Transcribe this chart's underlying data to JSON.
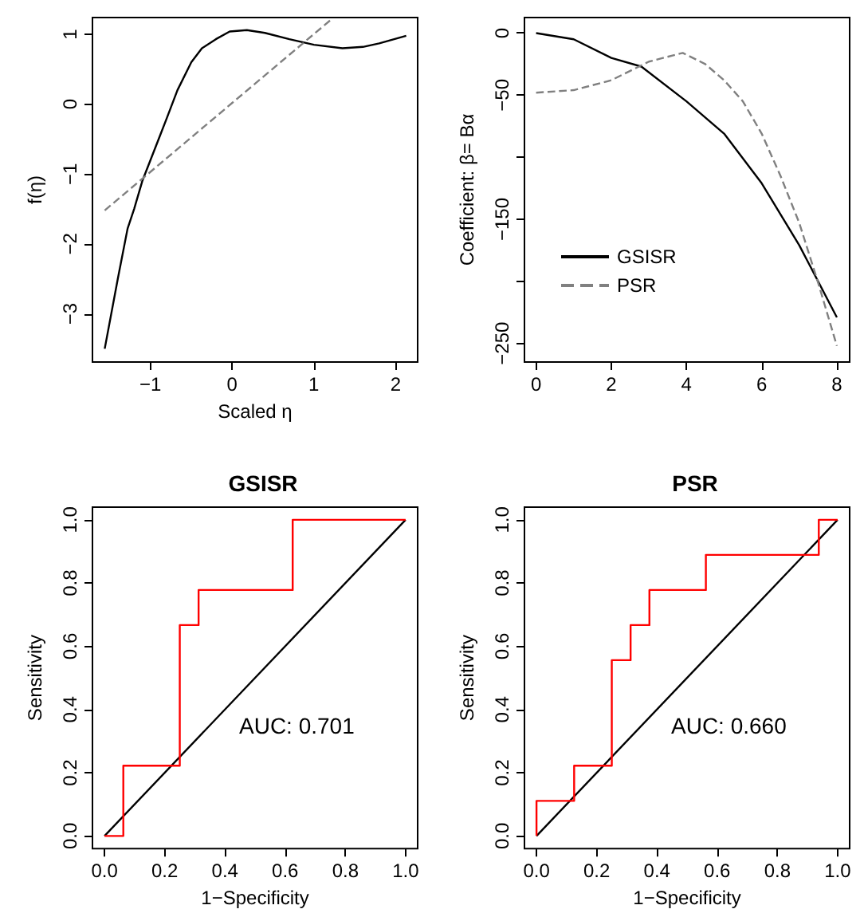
{
  "chart_data": [
    {
      "type": "line",
      "xlabel": "Scaled η",
      "ylabel": "f(η)",
      "xlim": [
        -1.71,
        2.27
      ],
      "ylim": [
        -3.69,
        1.24
      ],
      "xticks": [
        {
          "value": -1,
          "label": "−1"
        },
        {
          "value": 0,
          "label": "0"
        },
        1,
        2
      ],
      "yticks": [
        {
          "value": -3,
          "label": "−3"
        },
        {
          "value": -2,
          "label": "−2"
        },
        {
          "value": -1,
          "label": "−1"
        },
        {
          "value": 0,
          "label": "0"
        },
        1
      ],
      "marker": "none",
      "series": [
        {
          "color": "#000000",
          "line_style": "solid",
          "x": [
            -1.56,
            -1.4,
            -1.28,
            -1.2,
            -1.1,
            -1.0,
            -0.9,
            -0.8,
            -0.67,
            -0.5,
            -0.37,
            -0.2,
            -0.03,
            0.18,
            0.4,
            0.7,
            1.0,
            1.35,
            1.6,
            1.8,
            2.13
          ],
          "values": [
            -3.5,
            -2.5,
            -1.78,
            -1.5,
            -1.1,
            -0.8,
            -0.5,
            -0.2,
            0.2,
            0.6,
            0.8,
            0.93,
            1.04,
            1.06,
            1.02,
            0.93,
            0.85,
            0.8,
            0.82,
            0.87,
            0.98
          ]
        },
        {
          "color": "#808080",
          "line_style": "dashed",
          "x": [
            -1.56,
            1.22
          ],
          "values": [
            -1.52,
            1.22
          ]
        }
      ]
    },
    {
      "type": "line",
      "ylabel": "Coefficient: β= Bα",
      "xlim": [
        -0.31,
        8.34
      ],
      "ylim": [
        -265,
        12.5
      ],
      "xticks": [
        {
          "value": 0,
          "label": "0"
        },
        2,
        4,
        6,
        8
      ],
      "yticks": [
        {
          "value": -250,
          "label": "−250"
        },
        {
          "value": -200,
          "label": null
        },
        {
          "value": -150,
          "label": "−150"
        },
        {
          "value": -100,
          "label": null
        },
        {
          "value": -50,
          "label": "−50"
        },
        {
          "value": 0,
          "label": "0"
        }
      ],
      "marker": "none",
      "legend": "bottom left",
      "series": [
        {
          "name": "GSISR",
          "color": "#000000",
          "line_style": "solid",
          "x": [
            0,
            1,
            2,
            2.8,
            4,
            5,
            6,
            7,
            8
          ],
          "values": [
            0,
            -5,
            -20,
            -27,
            -55,
            -81,
            -121,
            -171,
            -229
          ]
        },
        {
          "name": "PSR",
          "color": "#808080",
          "line_style": "dashed",
          "x": [
            0,
            1,
            2,
            3,
            3.9,
            4.5,
            5,
            5.5,
            6,
            6.5,
            7,
            7.5,
            8
          ],
          "values": [
            -48,
            -46,
            -38,
            -23,
            -16,
            -25,
            -38,
            -55,
            -81,
            -115,
            -153,
            -201,
            -252
          ]
        }
      ]
    },
    {
      "type": "step",
      "title": "GSISR",
      "xlabel": "1−Specificity",
      "ylabel": "Sensitivity",
      "xlim": [
        -0.04,
        1.04
      ],
      "ylim": [
        -0.04,
        1.04
      ],
      "xticks": [
        {
          "value": 0,
          "label": "0.0"
        },
        {
          "value": 0.2,
          "label": "0.2"
        },
        {
          "value": 0.4,
          "label": "0.4"
        },
        {
          "value": 0.6,
          "label": "0.6"
        },
        {
          "value": 0.8,
          "label": "0.8"
        },
        {
          "value": 1,
          "label": "1.0"
        }
      ],
      "yticks": [
        {
          "value": 0,
          "label": "0.0"
        },
        {
          "value": 0.2,
          "label": "0.2"
        },
        {
          "value": 0.4,
          "label": "0.4"
        },
        {
          "value": 0.6,
          "label": "0.6"
        },
        {
          "value": 0.8,
          "label": "0.8"
        },
        {
          "value": 1,
          "label": "1.0"
        }
      ],
      "marker": "none",
      "annotations": [
        "AUC: 0.701"
      ],
      "series": [
        {
          "color": "#000000",
          "type": "line",
          "x": [
            0,
            1
          ],
          "values": [
            0,
            1
          ]
        },
        {
          "color": "#ff0000",
          "x": [
            0,
            0.0625,
            0.25,
            0.3125,
            0.625,
            1
          ],
          "values": [
            0,
            0.222,
            0.667,
            0.778,
            1,
            1
          ]
        }
      ]
    },
    {
      "type": "step",
      "title": "PSR",
      "xlabel": "1−Specificity",
      "ylabel": "Sensitivity",
      "xlim": [
        -0.04,
        1.04
      ],
      "ylim": [
        -0.04,
        1.04
      ],
      "xticks": [
        {
          "value": 0,
          "label": "0.0"
        },
        {
          "value": 0.2,
          "label": "0.2"
        },
        {
          "value": 0.4,
          "label": "0.4"
        },
        {
          "value": 0.6,
          "label": "0.6"
        },
        {
          "value": 0.8,
          "label": "0.8"
        },
        {
          "value": 1,
          "label": "1.0"
        }
      ],
      "yticks": [
        {
          "value": 0,
          "label": "0.0"
        },
        {
          "value": 0.2,
          "label": "0.2"
        },
        {
          "value": 0.4,
          "label": "0.4"
        },
        {
          "value": 0.6,
          "label": "0.6"
        },
        {
          "value": 0.8,
          "label": "0.8"
        },
        {
          "value": 1,
          "label": "1.0"
        }
      ],
      "marker": "none",
      "annotations": [
        "AUC: 0.660"
      ],
      "series": [
        {
          "color": "#000000",
          "type": "line",
          "x": [
            0,
            1
          ],
          "values": [
            0,
            1
          ]
        },
        {
          "color": "#ff0000",
          "x": [
            0,
            0,
            0.125,
            0.25,
            0.3125,
            0.375,
            0.5625,
            0.9375,
            1
          ],
          "values": [
            0,
            0.111,
            0.222,
            0.556,
            0.667,
            0.778,
            0.889,
            1,
            1
          ]
        }
      ]
    }
  ]
}
